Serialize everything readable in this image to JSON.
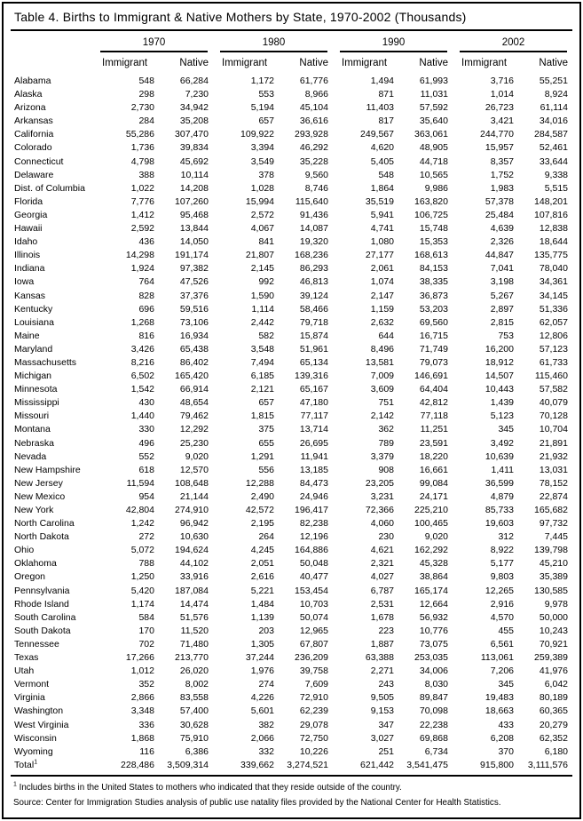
{
  "table": {
    "title": "Table 4. Births to Immigrant & Native Mothers by State, 1970-2002 (Thousands)",
    "year_groups": [
      "1970",
      "1980",
      "1990",
      "2002"
    ],
    "sub_headers": [
      "Immigrant",
      "Native"
    ],
    "rows": [
      {
        "state": "Alabama",
        "values": [
          "548",
          "66,284",
          "1,172",
          "61,776",
          "1,494",
          "61,993",
          "3,716",
          "55,251"
        ]
      },
      {
        "state": "Alaska",
        "values": [
          "298",
          "7,230",
          "553",
          "8,966",
          "871",
          "11,031",
          "1,014",
          "8,924"
        ]
      },
      {
        "state": "Arizona",
        "values": [
          "2,730",
          "34,942",
          "5,194",
          "45,104",
          "11,403",
          "57,592",
          "26,723",
          "61,114"
        ]
      },
      {
        "state": "Arkansas",
        "values": [
          "284",
          "35,208",
          "657",
          "36,616",
          "817",
          "35,640",
          "3,421",
          "34,016"
        ]
      },
      {
        "state": "California",
        "values": [
          "55,286",
          "307,470",
          "109,922",
          "293,928",
          "249,567",
          "363,061",
          "244,770",
          "284,587"
        ]
      },
      {
        "state": "Colorado",
        "values": [
          "1,736",
          "39,834",
          "3,394",
          "46,292",
          "4,620",
          "48,905",
          "15,957",
          "52,461"
        ]
      },
      {
        "state": "Connecticut",
        "values": [
          "4,798",
          "45,692",
          "3,549",
          "35,228",
          "5,405",
          "44,718",
          "8,357",
          "33,644"
        ]
      },
      {
        "state": "Delaware",
        "values": [
          "388",
          "10,114",
          "378",
          "9,560",
          "548",
          "10,565",
          "1,752",
          "9,338"
        ]
      },
      {
        "state": "Dist. of Columbia",
        "values": [
          "1,022",
          "14,208",
          "1,028",
          "8,746",
          "1,864",
          "9,986",
          "1,983",
          "5,515"
        ]
      },
      {
        "state": "Florida",
        "values": [
          "7,776",
          "107,260",
          "15,994",
          "115,640",
          "35,519",
          "163,820",
          "57,378",
          "148,201"
        ]
      },
      {
        "state": "Georgia",
        "values": [
          "1,412",
          "95,468",
          "2,572",
          "91,436",
          "5,941",
          "106,725",
          "25,484",
          "107,816"
        ]
      },
      {
        "state": "Hawaii",
        "values": [
          "2,592",
          "13,844",
          "4,067",
          "14,087",
          "4,741",
          "15,748",
          "4,639",
          "12,838"
        ]
      },
      {
        "state": "Idaho",
        "values": [
          "436",
          "14,050",
          "841",
          "19,320",
          "1,080",
          "15,353",
          "2,326",
          "18,644"
        ]
      },
      {
        "state": "Illinois",
        "values": [
          "14,298",
          "191,174",
          "21,807",
          "168,236",
          "27,177",
          "168,613",
          "44,847",
          "135,775"
        ]
      },
      {
        "state": "Indiana",
        "values": [
          "1,924",
          "97,382",
          "2,145",
          "86,293",
          "2,061",
          "84,153",
          "7,041",
          "78,040"
        ]
      },
      {
        "state": "Iowa",
        "values": [
          "764",
          "47,526",
          "992",
          "46,813",
          "1,074",
          "38,335",
          "3,198",
          "34,361"
        ]
      },
      {
        "state": "Kansas",
        "values": [
          "828",
          "37,376",
          "1,590",
          "39,124",
          "2,147",
          "36,873",
          "5,267",
          "34,145"
        ]
      },
      {
        "state": "Kentucky",
        "values": [
          "696",
          "59,516",
          "1,114",
          "58,466",
          "1,159",
          "53,203",
          "2,897",
          "51,336"
        ]
      },
      {
        "state": "Louisiana",
        "values": [
          "1,268",
          "73,106",
          "2,442",
          "79,718",
          "2,632",
          "69,560",
          "2,815",
          "62,057"
        ]
      },
      {
        "state": "Maine",
        "values": [
          "816",
          "16,934",
          "582",
          "15,874",
          "644",
          "16,715",
          "753",
          "12,806"
        ]
      },
      {
        "state": "Maryland",
        "values": [
          "3,426",
          "65,438",
          "3,548",
          "51,961",
          "8,496",
          "71,749",
          "16,200",
          "57,123"
        ]
      },
      {
        "state": "Massachusetts",
        "values": [
          "8,216",
          "86,402",
          "7,494",
          "65,134",
          "13,581",
          "79,073",
          "18,912",
          "61,733"
        ]
      },
      {
        "state": "Michigan",
        "values": [
          "6,502",
          "165,420",
          "6,185",
          "139,316",
          "7,009",
          "146,691",
          "14,507",
          "115,460"
        ]
      },
      {
        "state": "Minnesota",
        "values": [
          "1,542",
          "66,914",
          "2,121",
          "65,167",
          "3,609",
          "64,404",
          "10,443",
          "57,582"
        ]
      },
      {
        "state": "Mississippi",
        "values": [
          "430",
          "48,654",
          "657",
          "47,180",
          "751",
          "42,812",
          "1,439",
          "40,079"
        ]
      },
      {
        "state": "Missouri",
        "values": [
          "1,440",
          "79,462",
          "1,815",
          "77,117",
          "2,142",
          "77,118",
          "5,123",
          "70,128"
        ]
      },
      {
        "state": "Montana",
        "values": [
          "330",
          "12,292",
          "375",
          "13,714",
          "362",
          "11,251",
          "345",
          "10,704"
        ]
      },
      {
        "state": "Nebraska",
        "values": [
          "496",
          "25,230",
          "655",
          "26,695",
          "789",
          "23,591",
          "3,492",
          "21,891"
        ]
      },
      {
        "state": "Nevada",
        "values": [
          "552",
          "9,020",
          "1,291",
          "11,941",
          "3,379",
          "18,220",
          "10,639",
          "21,932"
        ]
      },
      {
        "state": "New Hampshire",
        "values": [
          "618",
          "12,570",
          "556",
          "13,185",
          "908",
          "16,661",
          "1,411",
          "13,031"
        ]
      },
      {
        "state": "New Jersey",
        "values": [
          "11,594",
          "108,648",
          "12,288",
          "84,473",
          "23,205",
          "99,084",
          "36,599",
          "78,152"
        ]
      },
      {
        "state": "New Mexico",
        "values": [
          "954",
          "21,144",
          "2,490",
          "24,946",
          "3,231",
          "24,171",
          "4,879",
          "22,874"
        ]
      },
      {
        "state": "New York",
        "values": [
          "42,804",
          "274,910",
          "42,572",
          "196,417",
          "72,366",
          "225,210",
          "85,733",
          "165,682"
        ]
      },
      {
        "state": "North Carolina",
        "values": [
          "1,242",
          "96,942",
          "2,195",
          "82,238",
          "4,060",
          "100,465",
          "19,603",
          "97,732"
        ]
      },
      {
        "state": "North Dakota",
        "values": [
          "272",
          "10,630",
          "264",
          "12,196",
          "230",
          "9,020",
          "312",
          "7,445"
        ]
      },
      {
        "state": "Ohio",
        "values": [
          "5,072",
          "194,624",
          "4,245",
          "164,886",
          "4,621",
          "162,292",
          "8,922",
          "139,798"
        ]
      },
      {
        "state": "Oklahoma",
        "values": [
          "788",
          "44,102",
          "2,051",
          "50,048",
          "2,321",
          "45,328",
          "5,177",
          "45,210"
        ]
      },
      {
        "state": "Oregon",
        "values": [
          "1,250",
          "33,916",
          "2,616",
          "40,477",
          "4,027",
          "38,864",
          "9,803",
          "35,389"
        ]
      },
      {
        "state": "Pennsylvania",
        "values": [
          "5,420",
          "187,084",
          "5,221",
          "153,454",
          "6,787",
          "165,174",
          "12,265",
          "130,585"
        ]
      },
      {
        "state": "Rhode Island",
        "values": [
          "1,174",
          "14,474",
          "1,484",
          "10,703",
          "2,531",
          "12,664",
          "2,916",
          "9,978"
        ]
      },
      {
        "state": "South Carolina",
        "values": [
          "584",
          "51,576",
          "1,139",
          "50,074",
          "1,678",
          "56,932",
          "4,570",
          "50,000"
        ]
      },
      {
        "state": "South Dakota",
        "values": [
          "170",
          "11,520",
          "203",
          "12,965",
          "223",
          "10,776",
          "455",
          "10,243"
        ]
      },
      {
        "state": "Tennessee",
        "values": [
          "702",
          "71,480",
          "1,305",
          "67,807",
          "1,887",
          "73,075",
          "6,561",
          "70,921"
        ]
      },
      {
        "state": "Texas",
        "values": [
          "17,266",
          "213,770",
          "37,244",
          "236,209",
          "63,388",
          "253,035",
          "113,061",
          "259,389"
        ]
      },
      {
        "state": "Utah",
        "values": [
          "1,012",
          "26,020",
          "1,976",
          "39,758",
          "2,271",
          "34,006",
          "7,206",
          "41,976"
        ]
      },
      {
        "state": "Vermont",
        "values": [
          "352",
          "8,002",
          "274",
          "7,609",
          "243",
          "8,030",
          "345",
          "6,042"
        ]
      },
      {
        "state": "Virginia",
        "values": [
          "2,866",
          "83,558",
          "4,226",
          "72,910",
          "9,505",
          "89,847",
          "19,483",
          "80,189"
        ]
      },
      {
        "state": "Washington",
        "values": [
          "3,348",
          "57,400",
          "5,601",
          "62,239",
          "9,153",
          "70,098",
          "18,663",
          "60,365"
        ]
      },
      {
        "state": "West Virginia",
        "values": [
          "336",
          "30,628",
          "382",
          "29,078",
          "347",
          "22,238",
          "433",
          "20,279"
        ]
      },
      {
        "state": "Wisconsin",
        "values": [
          "1,868",
          "75,910",
          "2,066",
          "72,750",
          "3,027",
          "69,868",
          "6,208",
          "62,352"
        ]
      },
      {
        "state": "Wyoming",
        "values": [
          "116",
          "6,386",
          "332",
          "10,226",
          "251",
          "6,734",
          "370",
          "6,180"
        ]
      }
    ],
    "total_row": {
      "label": "Total",
      "marker": "1",
      "values": [
        "228,486",
        "3,509,314",
        "339,662",
        "3,274,521",
        "621,442",
        "3,541,475",
        "915,800",
        "3,111,576"
      ]
    },
    "footnote": {
      "marker": "1",
      "text": " Includes births in the United States to mothers who indicated that they reside outside of the country."
    },
    "source": "Source: Center for Immigration Studies analysis of public use natality files provided by the National Center for Health Statistics.",
    "colors": {
      "border": "#000000",
      "text": "#000000",
      "background": "#ffffff"
    }
  }
}
